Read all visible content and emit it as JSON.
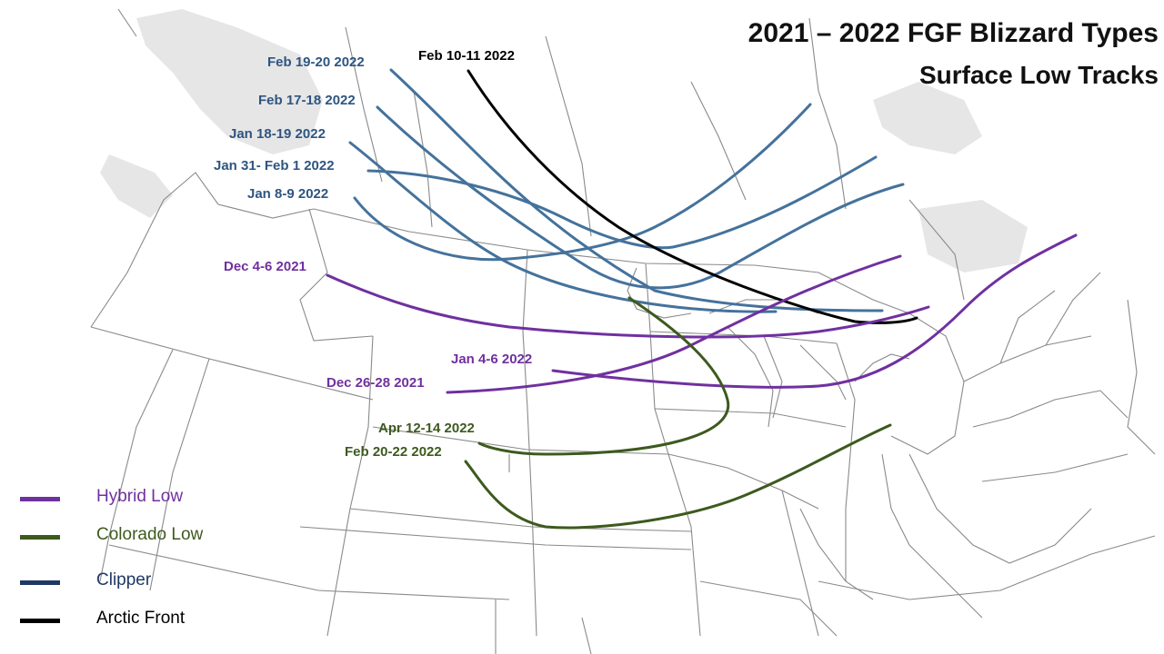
{
  "title": {
    "line1": "2021 – 2022 FGF Blizzard Types",
    "line2": "Surface  Low Tracks"
  },
  "colors": {
    "hybrid": "#7030a0",
    "colorado": "#3d5a1e",
    "clipper": "#44729c",
    "arctic": "#000000",
    "clipper_legend": "#1f3864",
    "clipper_label": "#2e5580",
    "basemap": "#8a8a8a",
    "shaded_land": "#e6e6e6"
  },
  "legend": [
    {
      "label": "Hybrid Low",
      "color": "#7030a0",
      "icon": "legend-line-swatch"
    },
    {
      "label": "Colorado Low",
      "color": "#3d5a1e",
      "icon": "legend-line-swatch"
    },
    {
      "label": "Clipper",
      "color": "#1f3864",
      "icon": "legend-line-swatch"
    },
    {
      "label": "Arctic Front",
      "color": "#000000",
      "icon": "legend-line-swatch"
    }
  ],
  "tracks": [
    {
      "label": "Feb 19-20 2022",
      "type": "clipper",
      "color": "#44729c"
    },
    {
      "label": "Feb 10-11 2022",
      "type": "arctic",
      "color": "#000000"
    },
    {
      "label": "Feb 17-18 2022",
      "type": "clipper",
      "color": "#44729c"
    },
    {
      "label": "Jan 18-19 2022",
      "type": "clipper",
      "color": "#44729c"
    },
    {
      "label": "Jan 31- Feb 1 2022",
      "type": "clipper",
      "color": "#44729c"
    },
    {
      "label": "Jan 8-9 2022",
      "type": "clipper",
      "color": "#44729c"
    },
    {
      "label": "Dec 4-6 2021",
      "type": "hybrid",
      "color": "#7030a0"
    },
    {
      "label": "Jan 4-6 2022",
      "type": "hybrid",
      "color": "#7030a0"
    },
    {
      "label": "Dec 26-28 2021",
      "type": "hybrid",
      "color": "#7030a0"
    },
    {
      "label": "Apr 12-14 2022",
      "type": "colorado",
      "color": "#3d5a1e"
    },
    {
      "label": "Feb 20-22 2022",
      "type": "colorado",
      "color": "#3d5a1e"
    }
  ]
}
